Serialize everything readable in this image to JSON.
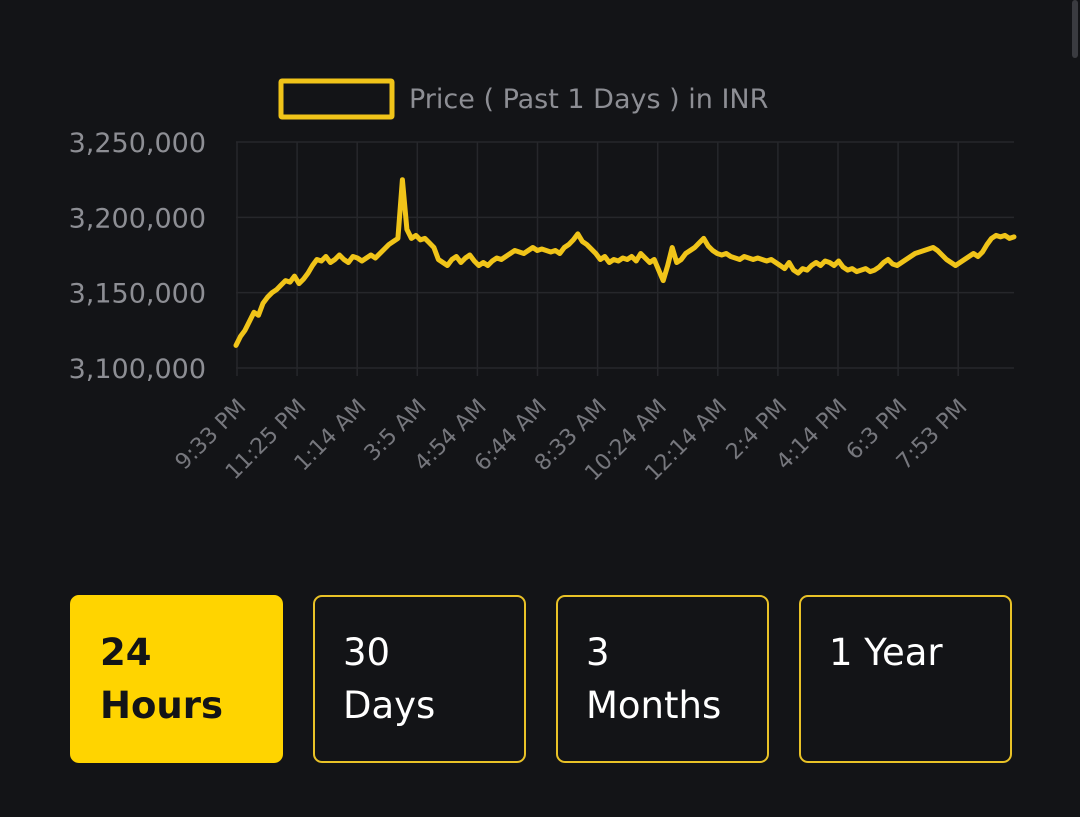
{
  "chart_data": {
    "type": "line",
    "legend": "Price ( Past 1 Days ) in INR",
    "legend_placement": "top-center",
    "line_color": "#f0c419",
    "grid": true,
    "ylim": [
      3100000,
      3250000
    ],
    "y_ticks": [
      3250000,
      3200000,
      3150000,
      3100000
    ],
    "y_tick_labels": [
      "3,250,000",
      "3,200,000",
      "3,150,000",
      "3,100,000"
    ],
    "x_tick_labels": [
      "9:33 PM",
      "11:25 PM",
      "1:14 AM",
      "3:5 AM",
      "4:54 AM",
      "6:44 AM",
      "8:33 AM",
      "10:24 AM",
      "12:14 AM",
      "2:4 PM",
      "4:14 PM",
      "6:3 PM",
      "7:53 PM"
    ],
    "series": [
      {
        "values": [
          3115000,
          3121000,
          3125000,
          3131000,
          3137000,
          3135000,
          3143000,
          3147000,
          3150000,
          3152000,
          3155000,
          3158000,
          3157000,
          3161000,
          3156000,
          3159000,
          3163000,
          3168000,
          3172000,
          3171000,
          3174000,
          3170000,
          3172000,
          3175000,
          3172000,
          3170000,
          3174000,
          3173000,
          3171000,
          3173000,
          3175000,
          3173000,
          3176000,
          3179000,
          3182000,
          3184000,
          3186000,
          3225000,
          3192000,
          3186000,
          3188000,
          3185000,
          3186000,
          3183000,
          3180000,
          3172000,
          3170000,
          3168000,
          3172000,
          3174000,
          3170000,
          3173000,
          3175000,
          3171000,
          3168000,
          3170000,
          3168000,
          3171000,
          3173000,
          3172000,
          3174000,
          3176000,
          3178000,
          3177000,
          3176000,
          3178000,
          3180000,
          3178000,
          3179000,
          3178000,
          3177000,
          3178000,
          3176000,
          3180000,
          3182000,
          3185000,
          3189000,
          3184000,
          3182000,
          3179000,
          3176000,
          3172000,
          3174000,
          3170000,
          3172000,
          3171000,
          3173000,
          3172000,
          3174000,
          3171000,
          3176000,
          3173000,
          3170000,
          3172000,
          3165000,
          3158000,
          3168000,
          3180000,
          3170000,
          3172000,
          3176000,
          3178000,
          3180000,
          3183000,
          3186000,
          3181000,
          3178000,
          3176000,
          3175000,
          3176000,
          3174000,
          3173000,
          3172000,
          3174000,
          3173000,
          3172000,
          3173000,
          3172000,
          3171000,
          3172000,
          3170000,
          3168000,
          3166000,
          3170000,
          3165000,
          3163000,
          3166000,
          3165000,
          3168000,
          3170000,
          3168000,
          3171000,
          3170000,
          3168000,
          3171000,
          3167000,
          3165000,
          3166000,
          3164000,
          3165000,
          3166000,
          3164000,
          3165000,
          3167000,
          3170000,
          3172000,
          3169000,
          3168000,
          3170000,
          3172000,
          3174000,
          3176000,
          3177000,
          3178000,
          3179000,
          3180000,
          3178000,
          3175000,
          3172000,
          3170000,
          3168000,
          3170000,
          3172000,
          3174000,
          3176000,
          3174000,
          3177000,
          3182000,
          3186000,
          3188000,
          3187000,
          3188000,
          3186000,
          3187000
        ]
      }
    ]
  },
  "range_selector": {
    "options": [
      {
        "line1": "24",
        "line2": "Hours",
        "active": true
      },
      {
        "line1": "30",
        "line2": "Days",
        "active": false
      },
      {
        "line1": "3",
        "line2": "Months",
        "active": false
      },
      {
        "line1": "1 Year",
        "line2": "",
        "active": false
      }
    ],
    "colors": {
      "active_bg": "#ffd400",
      "border": "#e9c227",
      "background": "#131417"
    }
  }
}
